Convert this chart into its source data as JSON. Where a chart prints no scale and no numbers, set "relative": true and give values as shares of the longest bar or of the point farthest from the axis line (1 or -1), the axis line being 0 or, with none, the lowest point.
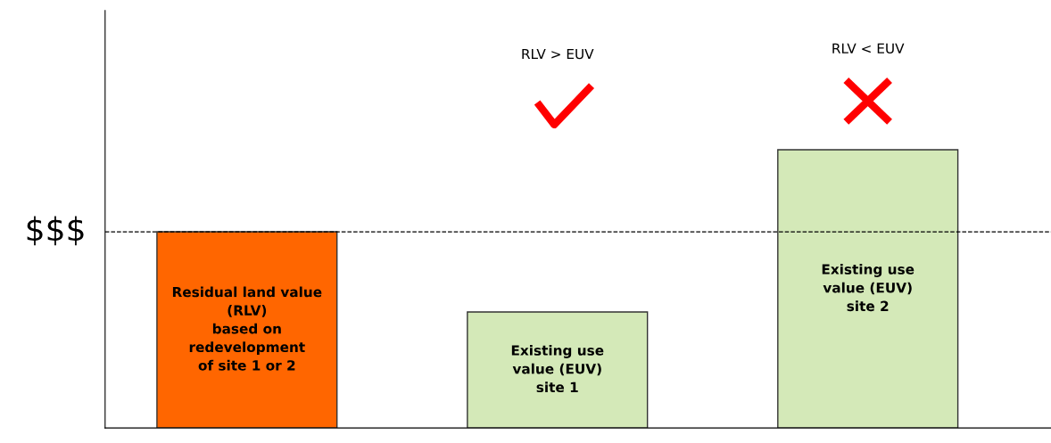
{
  "chart_data": {
    "type": "bar",
    "relative": true,
    "categories": [
      "Residual land value\n(RLV)\nbased on\nredevelopment\nof site 1 or 2",
      "Existing use\nvalue (EUV)\nsite 1",
      "Existing use\nvalue (EUV)\nsite 2"
    ],
    "values": [
      0.705,
      0.417,
      1
    ],
    "colors": [
      "#ff6600",
      "#d4e9b8",
      "#d4e9b8"
    ],
    "ref_lines": [
      {
        "axis": "y",
        "value": 0.705,
        "label": "$$$",
        "color": "#000000",
        "line_style": "dashed"
      }
    ],
    "annotations": [
      "RLV > EUV",
      "RLV < EUV"
    ],
    "legend": false
  }
}
